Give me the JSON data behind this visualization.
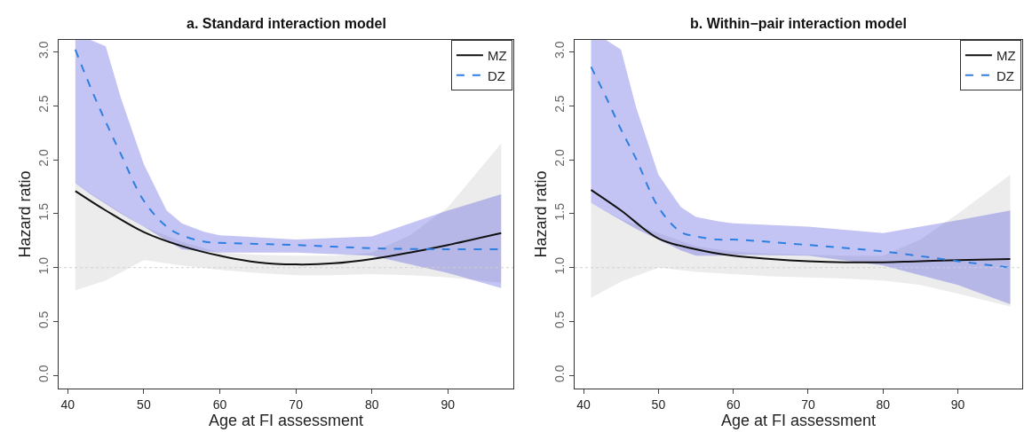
{
  "chart_data": [
    {
      "type": "line",
      "title": "a. Standard interaction model",
      "xlabel": "Age at FI assessment",
      "ylabel": "Hazard ratio",
      "xlim": [
        38.8,
        98.6
      ],
      "xticks": [
        40,
        50,
        60,
        70,
        80,
        90
      ],
      "ylim": [
        -0.12,
        3.11
      ],
      "yticks": [
        {
          "value": 0,
          "label": "0.0"
        },
        {
          "value": 0.5,
          "label": "0.5"
        },
        {
          "value": 1,
          "label": "1.0"
        },
        {
          "value": 1.5,
          "label": "1.5"
        },
        {
          "value": 2,
          "label": "2.0"
        },
        {
          "value": 2.5,
          "label": "2.5"
        },
        {
          "value": 3,
          "label": "3.0"
        }
      ],
      "legend": "top right",
      "ref_lines": [
        {
          "axis": "y",
          "value": 1,
          "color": "#d0d0d0",
          "line_style": "dotted"
        }
      ],
      "series": [
        {
          "name": "MZ",
          "color": "#111111",
          "line_style": "solid",
          "x": [
            41,
            45,
            50,
            55,
            60,
            65,
            70,
            75,
            80,
            85,
            90,
            97
          ],
          "values": [
            1.71,
            1.53,
            1.33,
            1.2,
            1.11,
            1.05,
            1.03,
            1.04,
            1.08,
            1.14,
            1.21,
            1.32
          ],
          "lower": [
            0.79,
            0.88,
            1.07,
            1.02,
            0.98,
            0.95,
            0.93,
            0.93,
            0.94,
            0.93,
            0.91,
            0.86
          ],
          "upper": [
            1.78,
            1.6,
            1.38,
            1.24,
            1.14,
            1.12,
            1.11,
            1.11,
            1.14,
            1.3,
            1.56,
            2.15
          ]
        },
        {
          "name": "DZ",
          "color": "#2f7fe0",
          "line_style": "dashed",
          "x": [
            41,
            43,
            45,
            47,
            50,
            53,
            55,
            58,
            60,
            70,
            80,
            90,
            97
          ],
          "values": [
            3.02,
            2.67,
            2.35,
            2.05,
            1.62,
            1.38,
            1.3,
            1.24,
            1.23,
            1.21,
            1.18,
            1.17,
            1.17
          ],
          "lower": [
            1.78,
            1.68,
            1.59,
            1.5,
            1.38,
            1.25,
            1.17,
            1.15,
            1.14,
            1.14,
            1.11,
            0.95,
            0.81
          ],
          "upper": [
            3.11,
            3.11,
            3.05,
            2.57,
            1.96,
            1.53,
            1.41,
            1.33,
            1.3,
            1.26,
            1.29,
            1.53,
            1.68
          ]
        }
      ]
    },
    {
      "type": "line",
      "title": "b. Within−pair interaction model",
      "xlabel": "Age at FI assessment",
      "ylabel": "Hazard ratio",
      "xlim": [
        38.8,
        98.6
      ],
      "xticks": [
        40,
        50,
        60,
        70,
        80,
        90
      ],
      "ylim": [
        -0.12,
        3.11
      ],
      "yticks": [
        {
          "value": 0,
          "label": "0.0"
        },
        {
          "value": 0.5,
          "label": "0.5"
        },
        {
          "value": 1,
          "label": "1.0"
        },
        {
          "value": 1.5,
          "label": "1.5"
        },
        {
          "value": 2,
          "label": "2.0"
        },
        {
          "value": 2.5,
          "label": "2.5"
        },
        {
          "value": 3,
          "label": "3.0"
        }
      ],
      "legend": "top right",
      "ref_lines": [
        {
          "axis": "y",
          "value": 1,
          "color": "#d0d0d0",
          "line_style": "dotted"
        }
      ],
      "series": [
        {
          "name": "MZ",
          "color": "#111111",
          "line_style": "solid",
          "x": [
            41,
            45,
            50,
            55,
            60,
            65,
            70,
            75,
            80,
            85,
            90,
            97
          ],
          "values": [
            1.72,
            1.53,
            1.27,
            1.17,
            1.11,
            1.08,
            1.06,
            1.05,
            1.05,
            1.06,
            1.07,
            1.08
          ],
          "lower": [
            0.72,
            0.87,
            1.0,
            0.96,
            0.94,
            0.92,
            0.91,
            0.9,
            0.88,
            0.84,
            0.76,
            0.64
          ],
          "upper": [
            1.6,
            1.45,
            1.32,
            1.2,
            1.15,
            1.13,
            1.12,
            1.11,
            1.11,
            1.26,
            1.5,
            1.86
          ]
        },
        {
          "name": "DZ",
          "color": "#2f7fe0",
          "line_style": "dashed",
          "x": [
            41,
            43,
            45,
            47,
            50,
            53,
            55,
            58,
            60,
            70,
            80,
            90,
            97
          ],
          "values": [
            2.86,
            2.58,
            2.28,
            2.01,
            1.56,
            1.33,
            1.29,
            1.26,
            1.26,
            1.21,
            1.15,
            1.06,
            1.0
          ],
          "lower": [
            1.6,
            1.52,
            1.44,
            1.36,
            1.26,
            1.16,
            1.11,
            1.11,
            1.12,
            1.11,
            1.02,
            0.84,
            0.66
          ],
          "upper": [
            3.11,
            3.11,
            3.02,
            2.49,
            1.86,
            1.56,
            1.47,
            1.43,
            1.41,
            1.38,
            1.32,
            1.44,
            1.53
          ]
        }
      ]
    }
  ]
}
